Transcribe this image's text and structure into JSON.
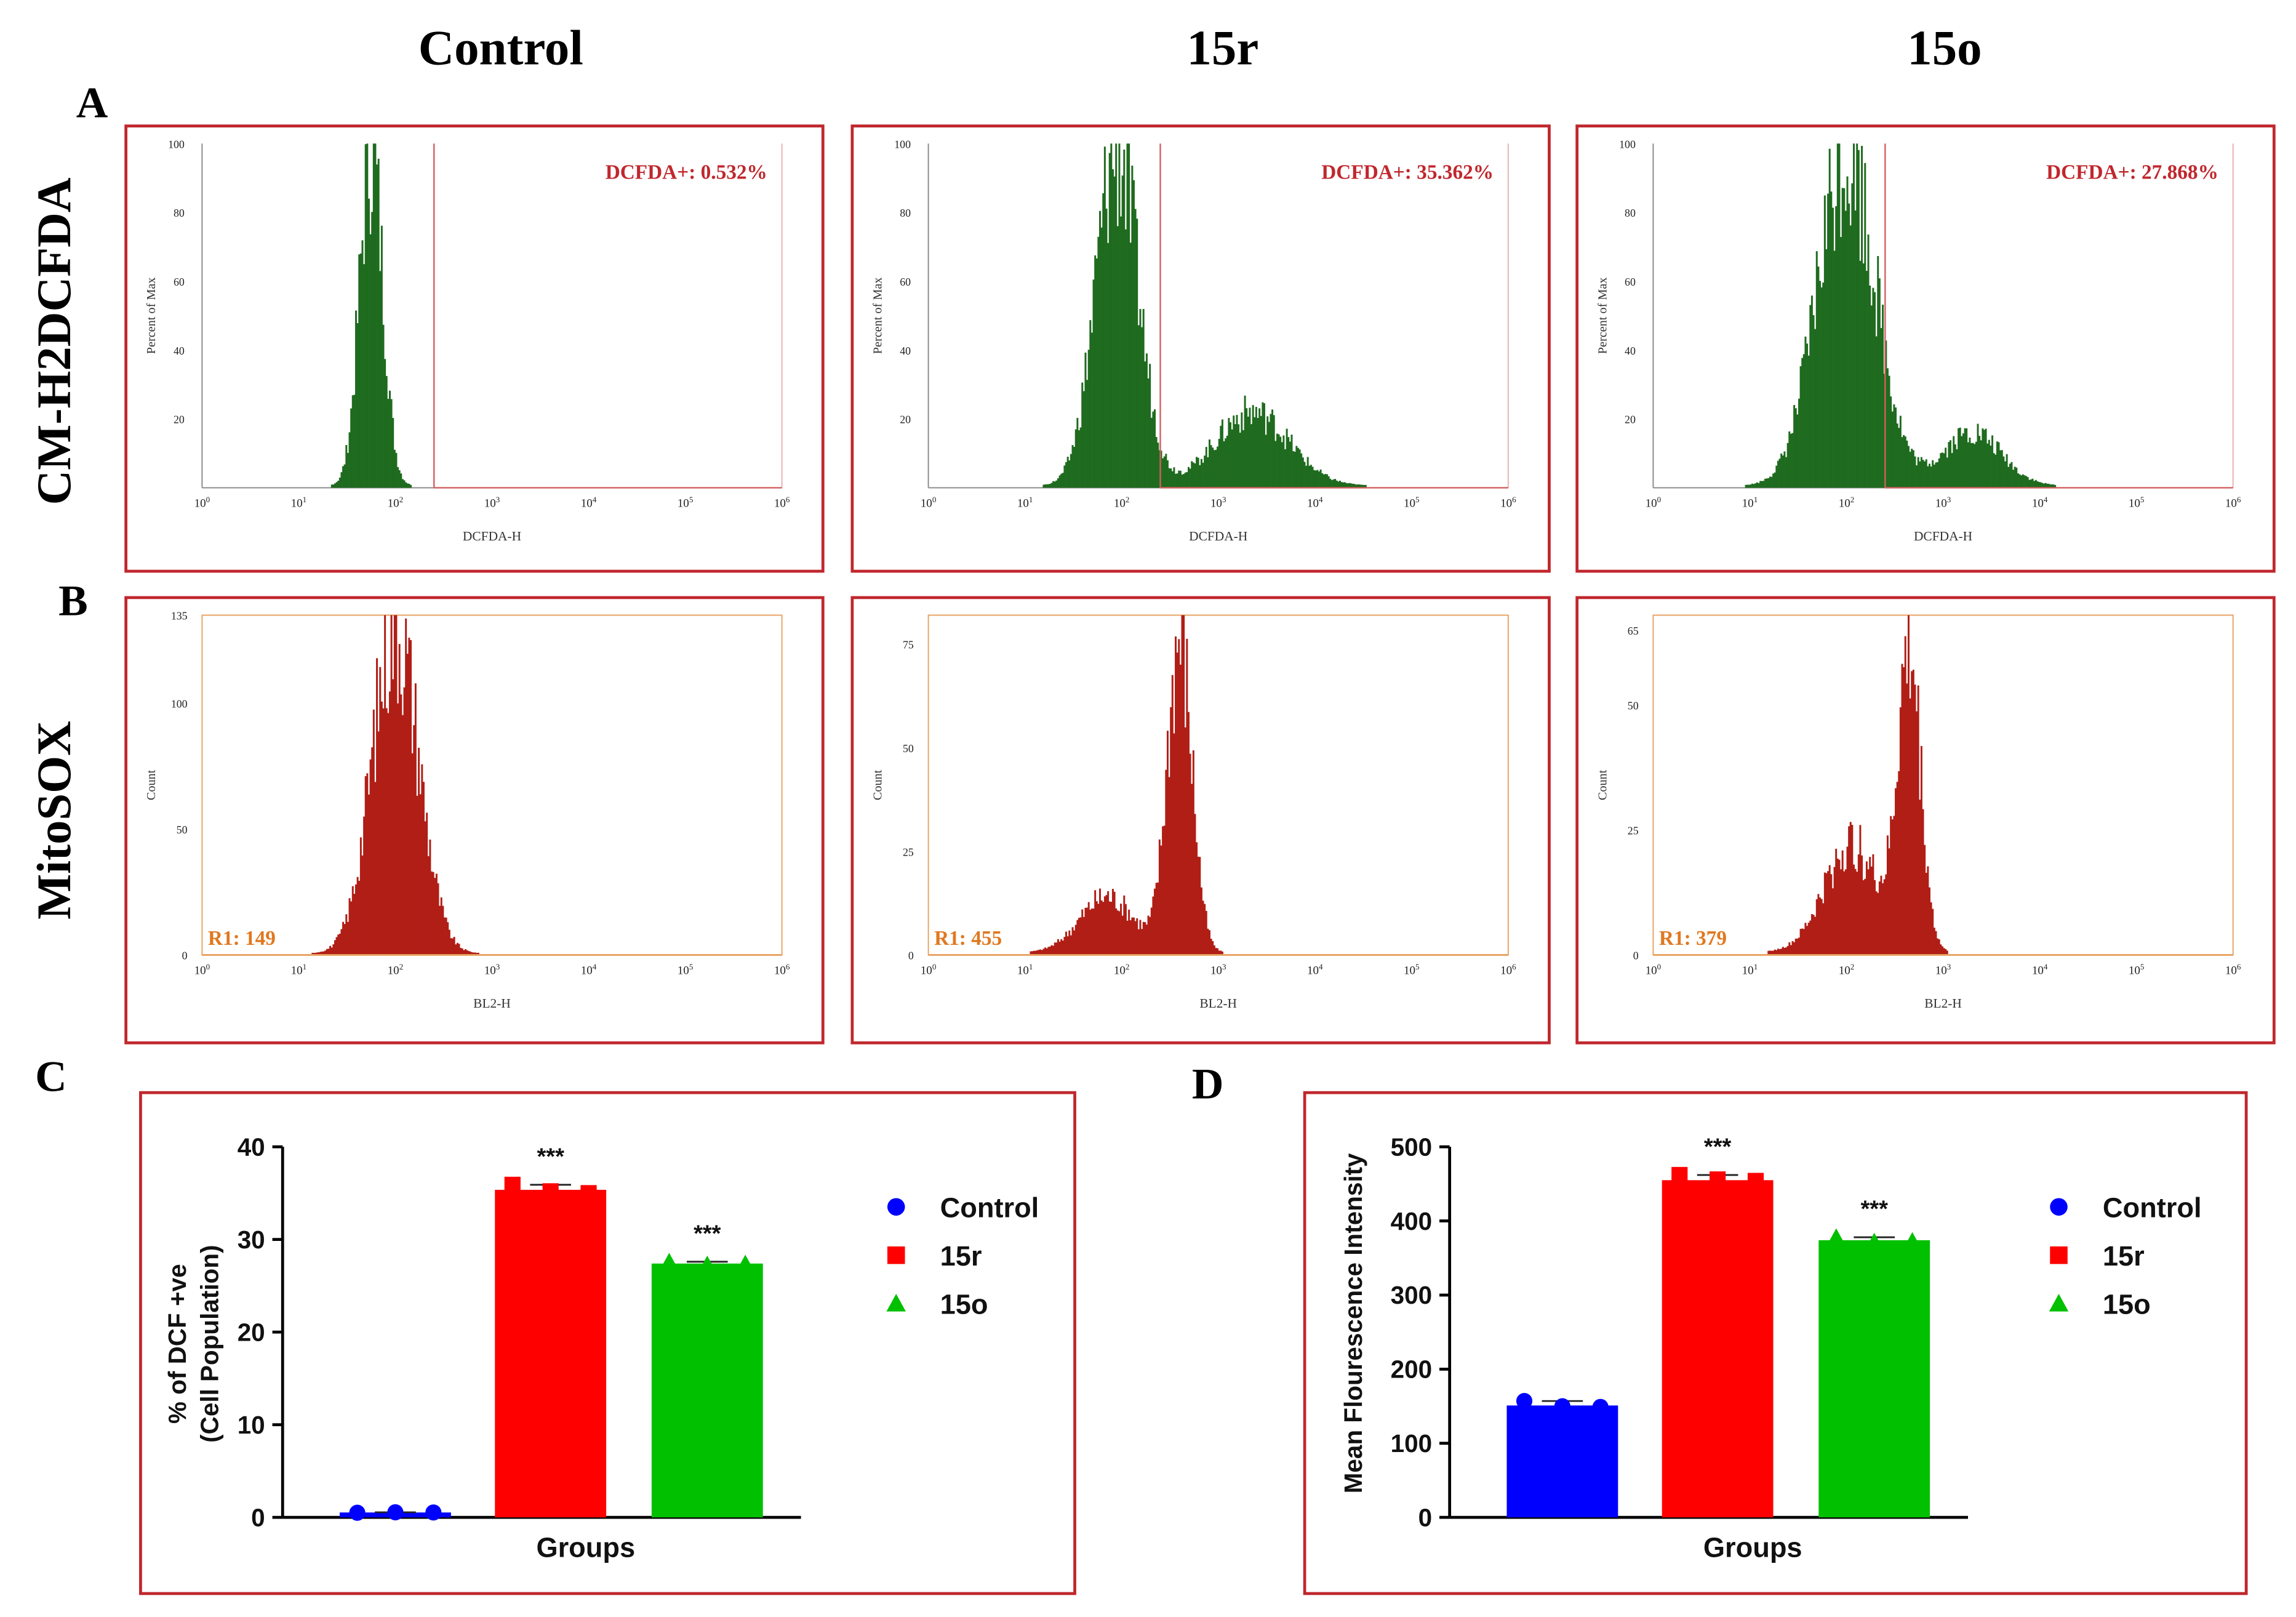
{
  "columns": [
    "Control",
    "15r",
    "15o"
  ],
  "rows": [
    {
      "letter": "A",
      "label": "CM-H2DCFDA"
    },
    {
      "letter": "B",
      "label": "MitoSOX"
    }
  ],
  "colors": {
    "frame": "#c0272d",
    "green_hist": "#1f6b1f",
    "red_hist": "#b01e16",
    "gate_line": "#d06060",
    "gate_text": "#c0272d",
    "mito_gate": "#e8a060",
    "mito_text": "#e07820",
    "control": "#0000ff",
    "r15": "#ff0000",
    "o15": "#00c000"
  },
  "flow_dcfda": [
    {
      "group": "Control",
      "gate_label": "DCFDA+: 0.532%",
      "y_label": "Percent of Max",
      "x_label": "DCFDA-H",
      "y_ticks": [
        "100",
        "80",
        "60",
        "40",
        "20"
      ],
      "x_ticks": [
        "10^0",
        "10^1",
        "10^2",
        "10^3",
        "10^4",
        "10^5",
        "10^6"
      ],
      "gate_decade": 2.4,
      "peaks": [
        {
          "center": 1.75,
          "sigma": 0.12,
          "height": 100
        }
      ]
    },
    {
      "group": "15r",
      "gate_label": "DCFDA+: 35.362%",
      "y_label": "Percent of Max",
      "x_label": "DCFDA-H",
      "y_ticks": [
        "100",
        "80",
        "60",
        "40",
        "20"
      ],
      "x_ticks": [
        "10^0",
        "10^1",
        "10^2",
        "10^3",
        "10^4",
        "10^5",
        "10^6"
      ],
      "gate_decade": 2.4,
      "peaks": [
        {
          "center": 1.95,
          "sigma": 0.22,
          "height": 100
        },
        {
          "center": 3.35,
          "sigma": 0.38,
          "height": 22
        }
      ]
    },
    {
      "group": "15o",
      "gate_label": "DCFDA+: 27.868%",
      "y_label": "Percent of Max",
      "x_label": "DCFDA-H",
      "y_ticks": [
        "100",
        "80",
        "60",
        "40",
        "20"
      ],
      "x_ticks": [
        "10^0",
        "10^1",
        "10^2",
        "10^3",
        "10^4",
        "10^5",
        "10^6"
      ],
      "gate_decade": 2.4,
      "peaks": [
        {
          "center": 2.0,
          "sigma": 0.3,
          "height": 100
        },
        {
          "center": 3.3,
          "sigma": 0.3,
          "height": 16
        }
      ]
    }
  ],
  "flow_mitosox": [
    {
      "group": "Control",
      "gate_label": "R1: 149",
      "y_label": "Count",
      "x_label": "BL2-H",
      "y_ticks": [
        "135",
        "100",
        "50",
        "0"
      ],
      "y_tick_values": [
        135,
        100,
        50,
        0
      ],
      "y_max": 135,
      "x_ticks": [
        "10^0",
        "10^1",
        "10^2",
        "10^3",
        "10^4",
        "10^5",
        "10^6"
      ],
      "peaks": [
        {
          "center": 2.0,
          "sigma": 0.24,
          "height": 135
        }
      ]
    },
    {
      "group": "15r",
      "gate_label": "R1: 455",
      "y_label": "Count",
      "x_label": "BL2-H",
      "y_ticks": [
        "75",
        "50",
        "25",
        "0"
      ],
      "y_tick_values": [
        75,
        50,
        25,
        0
      ],
      "y_max": 82,
      "x_ticks": [
        "10^0",
        "10^1",
        "10^2",
        "10^3",
        "10^4",
        "10^5",
        "10^6"
      ],
      "peaks": [
        {
          "center": 2.6,
          "sigma": 0.13,
          "height": 78
        },
        {
          "center": 1.85,
          "sigma": 0.28,
          "height": 14
        }
      ]
    },
    {
      "group": "15o",
      "gate_label": "R1: 379",
      "y_label": "Count",
      "x_label": "BL2-H",
      "y_ticks": [
        "65",
        "50",
        "25",
        "0"
      ],
      "y_tick_values": [
        65,
        50,
        25,
        0
      ],
      "y_max": 68,
      "x_ticks": [
        "10^0",
        "10^1",
        "10^2",
        "10^3",
        "10^4",
        "10^5",
        "10^6"
      ],
      "peaks": [
        {
          "center": 2.65,
          "sigma": 0.12,
          "height": 60
        },
        {
          "center": 2.05,
          "sigma": 0.28,
          "height": 22
        }
      ]
    }
  ],
  "chart_data": [
    {
      "panel": "C",
      "type": "bar",
      "categories": [
        "Control",
        "15r",
        "15o"
      ],
      "values": [
        0.53,
        35.36,
        27.4
      ],
      "points": [
        [
          0.5,
          0.55,
          0.53
        ],
        [
          35.9,
          35.2,
          35.0
        ],
        [
          27.6,
          27.3,
          27.4
        ]
      ],
      "significance": [
        "",
        "***",
        "***"
      ],
      "xlabel": "Groups",
      "ylabel_line1": "% of DCF +ve",
      "ylabel_line2": "(Cell Population)",
      "ylim": [
        0,
        40
      ],
      "y_ticks": [
        "0",
        "10",
        "20",
        "30",
        "40"
      ],
      "legend": [
        {
          "label": "Control",
          "marker": "circle"
        },
        {
          "label": "15r",
          "marker": "square"
        },
        {
          "label": "15o",
          "marker": "triangle"
        }
      ],
      "legend_position": "right"
    },
    {
      "panel": "D",
      "type": "bar",
      "categories": [
        "Control",
        "15r",
        "15o"
      ],
      "values": [
        151,
        455,
        374
      ],
      "points": [
        [
          157,
          150,
          149
        ],
        [
          462,
          456,
          454
        ],
        [
          378,
          372,
          373
        ]
      ],
      "significance": [
        "",
        "***",
        "***"
      ],
      "xlabel": "Groups",
      "ylabel": "Mean Flourescence Intensity",
      "ylim": [
        0,
        500
      ],
      "y_ticks": [
        "0",
        "100",
        "200",
        "300",
        "400",
        "500"
      ],
      "legend": [
        {
          "label": "Control",
          "marker": "circle"
        },
        {
          "label": "15r",
          "marker": "square"
        },
        {
          "label": "15o",
          "marker": "triangle"
        }
      ],
      "legend_position": "right"
    }
  ]
}
